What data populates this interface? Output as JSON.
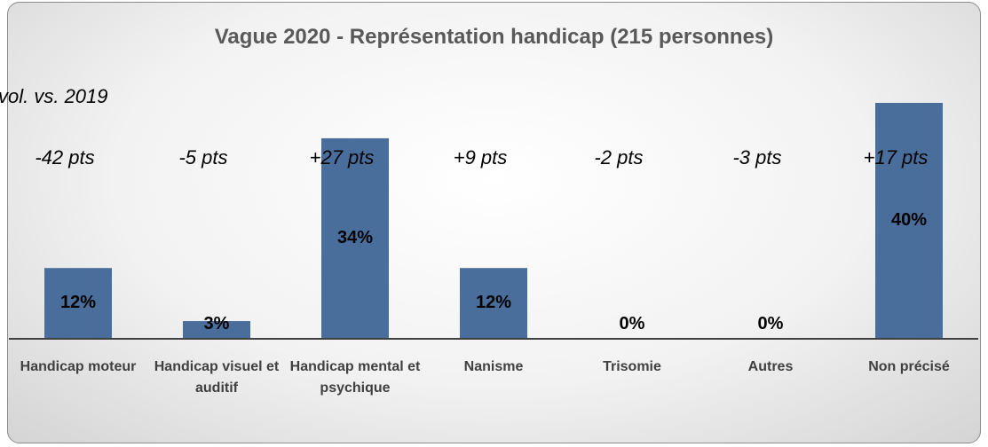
{
  "chart_data": {
    "type": "bar",
    "title": "Vague 2020 - Représentation handicap (215 personnes)",
    "subtitle": "vol. vs. 2019",
    "categories": [
      "Handicap moteur",
      "Handicap visuel et auditif",
      "Handicap mental et psychique",
      "Nanisme",
      "Trisomie",
      "Autres",
      "Non précisé"
    ],
    "values": [
      12,
      3,
      34,
      12,
      0,
      0,
      40
    ],
    "value_labels": [
      "12%",
      "3%",
      "34%",
      "12%",
      "0%",
      "0%",
      "40%"
    ],
    "annotations": [
      "-42 pts",
      "-5 pts",
      "+27 pts",
      "+9 pts",
      "-2 pts",
      "-3 pts",
      "+17 pts"
    ],
    "color": "#4a6e9b"
  }
}
